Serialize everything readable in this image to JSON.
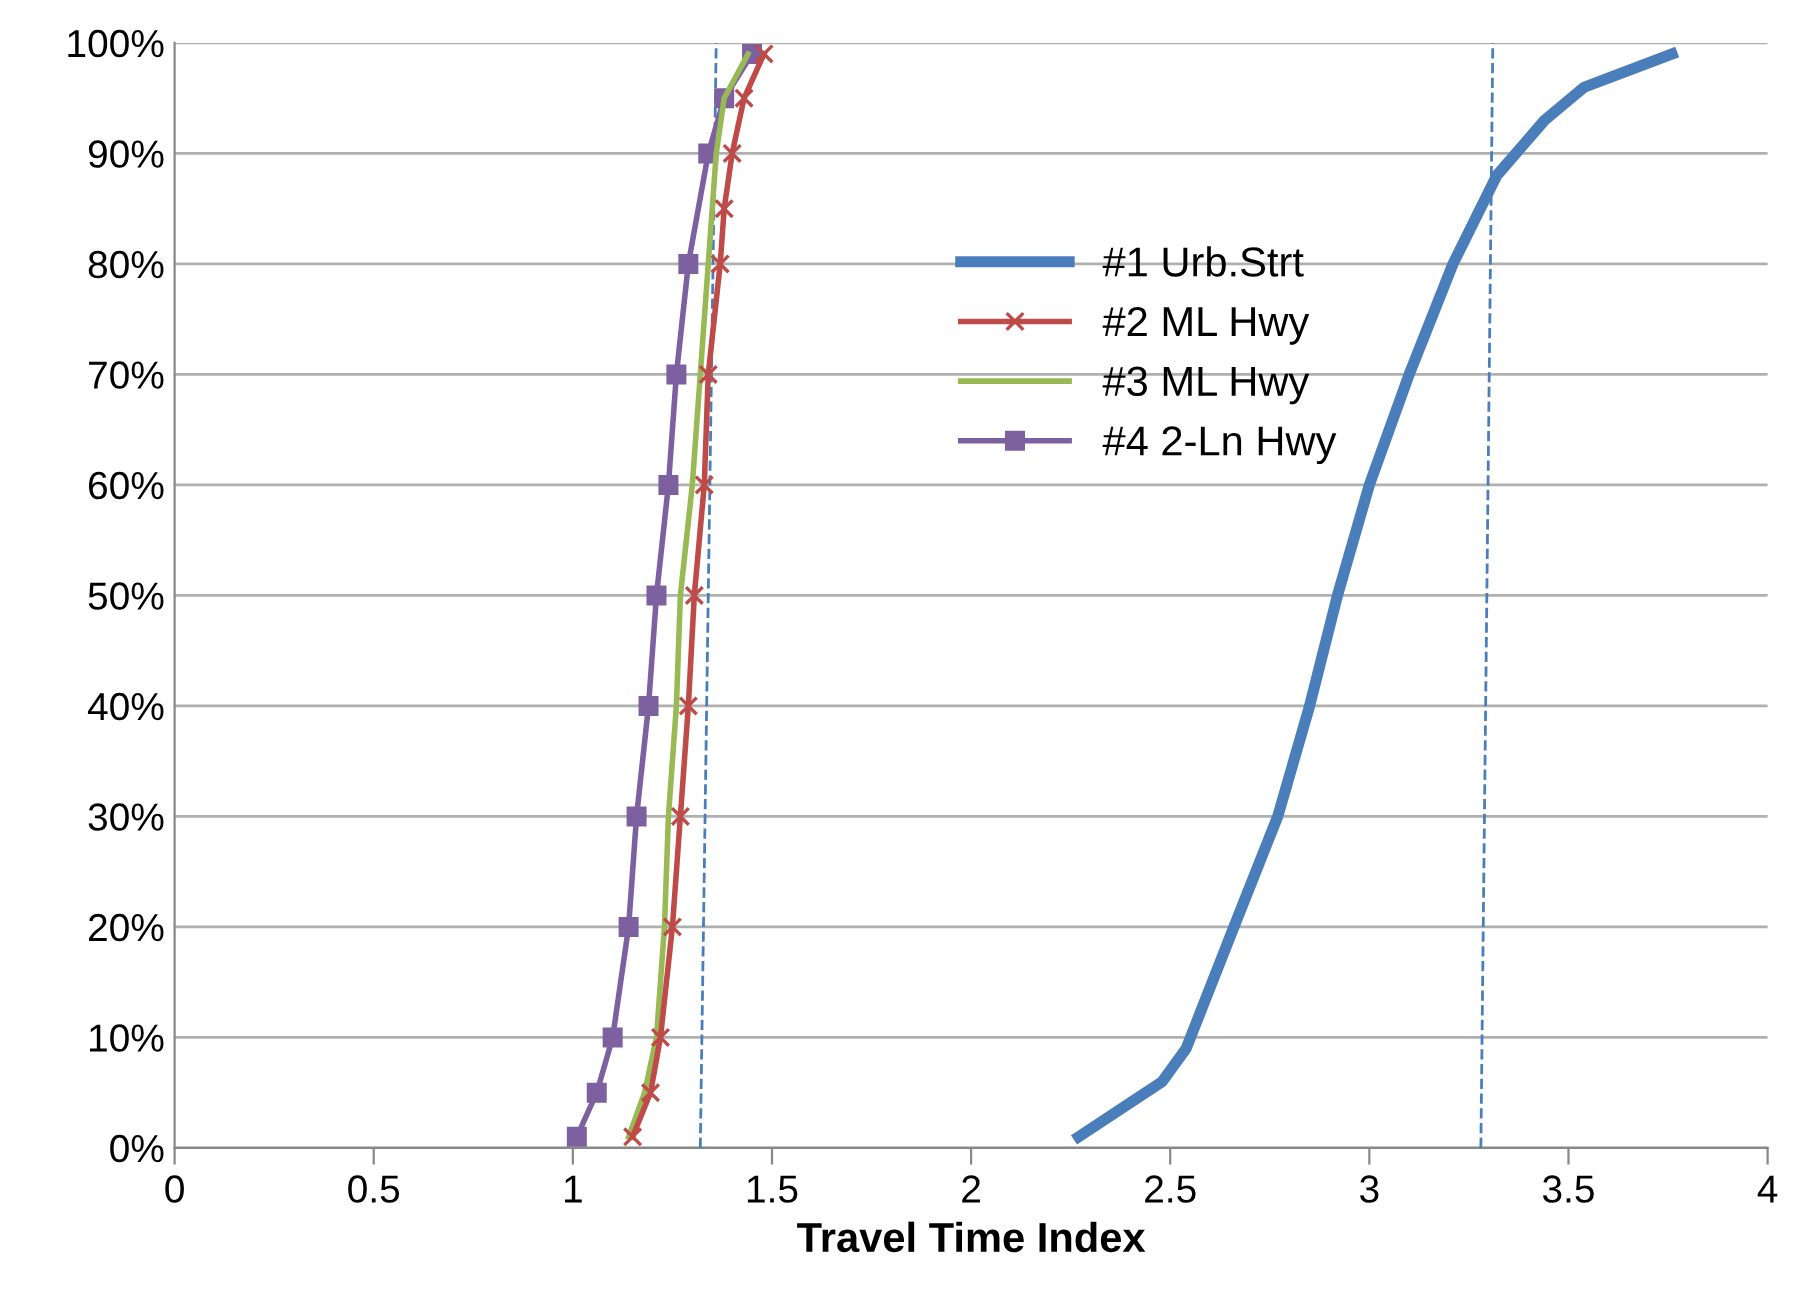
{
  "chart_data": {
    "type": "line",
    "xlabel": "Travel Time Index",
    "xlim": [
      0,
      4
    ],
    "xticks": [
      0,
      0.5,
      1,
      1.5,
      2,
      2.5,
      3,
      3.5,
      4
    ],
    "ylim": [
      0,
      100
    ],
    "yticks": [
      {
        "value": 0,
        "label": "0%"
      },
      {
        "value": 10,
        "label": "10%"
      },
      {
        "value": 20,
        "label": "20%"
      },
      {
        "value": 30,
        "label": "30%"
      },
      {
        "value": 40,
        "label": "40%"
      },
      {
        "value": 50,
        "label": "50%"
      },
      {
        "value": 60,
        "label": "60%"
      },
      {
        "value": 70,
        "label": "70%"
      },
      {
        "value": 80,
        "label": "80%"
      },
      {
        "value": 90,
        "label": "90%"
      },
      {
        "value": 100,
        "label": "100%"
      }
    ],
    "grid": "y",
    "legend": "top center",
    "series": [
      {
        "name": "#1 Urb.Strt",
        "color": "#4a7ebb",
        "marker": "none",
        "x": [
          2.27,
          2.48,
          2.54,
          2.66,
          2.77,
          2.85,
          2.92,
          3.0,
          3.1,
          3.21,
          3.32,
          3.44,
          3.54,
          3.76
        ],
        "values": [
          1,
          6,
          9,
          20,
          30,
          40,
          50,
          60,
          70,
          80,
          88,
          93,
          96,
          99
        ]
      },
      {
        "name": "#2 ML Hwy",
        "color": "#be4b48",
        "marker": "cross",
        "x": [
          1.15,
          1.195,
          1.22,
          1.25,
          1.27,
          1.29,
          1.305,
          1.33,
          1.34,
          1.37,
          1.38,
          1.4,
          1.43,
          1.48
        ],
        "values": [
          1,
          5,
          10,
          20,
          30,
          40,
          50,
          60,
          70,
          80,
          85,
          90,
          95,
          99
        ]
      },
      {
        "name": "#3 ML Hwy",
        "color": "#98b954",
        "marker": "none",
        "x": [
          1.14,
          1.18,
          1.21,
          1.23,
          1.24,
          1.26,
          1.27,
          1.3,
          1.32,
          1.34,
          1.36,
          1.38,
          1.44
        ],
        "values": [
          1,
          5,
          10,
          20,
          30,
          40,
          50,
          60,
          70,
          80,
          90,
          95,
          99
        ]
      },
      {
        "name": "#4 2-Ln Hwy",
        "color": "#7d60a0",
        "marker": "square",
        "x": [
          1.01,
          1.06,
          1.1,
          1.14,
          1.16,
          1.19,
          1.21,
          1.24,
          1.26,
          1.29,
          1.34,
          1.38,
          1.45
        ],
        "values": [
          1,
          5,
          10,
          20,
          30,
          40,
          50,
          60,
          70,
          80,
          90,
          95,
          99
        ]
      },
      {
        "color": "#4a7ebb",
        "marker": "none",
        "line_style": "dashed",
        "x": [
          1.32,
          1.36
        ],
        "values": [
          0,
          100
        ]
      },
      {
        "color": "#4a7ebb",
        "marker": "none",
        "line_style": "dashed",
        "x": [
          3.28,
          3.31
        ],
        "values": [
          0,
          100
        ]
      }
    ]
  }
}
